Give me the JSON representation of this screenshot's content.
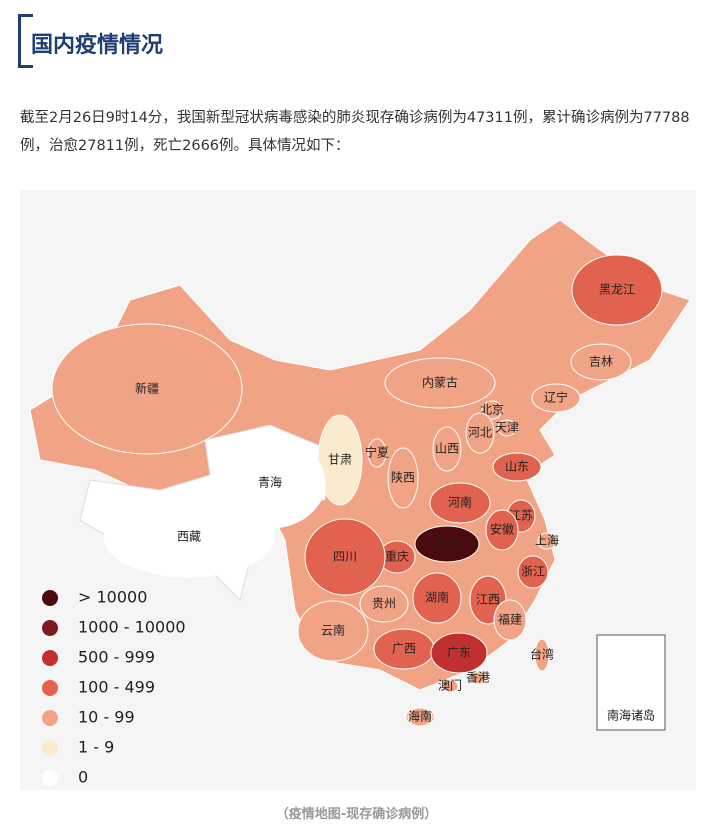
{
  "header": {
    "title": "国内疫情情况"
  },
  "paragraph": "截至2月26日9时14分，我国新型冠状病毒感染的肺炎现存确诊病例为47311例，累计确诊病例为77788例，治愈27811例，死亡2666例。具体情况如下：",
  "map": {
    "regions": [
      {
        "name": "黑龙江",
        "color": "#e0624f"
      },
      {
        "name": "吉林",
        "color": "#f1a485"
      },
      {
        "name": "辽宁",
        "color": "#f1a485"
      },
      {
        "name": "内蒙古",
        "color": "#f1a485"
      },
      {
        "name": "北京",
        "color": "#f1a485"
      },
      {
        "name": "天津",
        "color": "#f1a485"
      },
      {
        "name": "河北",
        "color": "#f1a485"
      },
      {
        "name": "山西",
        "color": "#f1a485"
      },
      {
        "name": "山东",
        "color": "#e0624f"
      },
      {
        "name": "河南",
        "color": "#e0624f"
      },
      {
        "name": "江苏",
        "color": "#e0624f"
      },
      {
        "name": "安徽",
        "color": "#e0624f"
      },
      {
        "name": "上海",
        "color": "#f1a485"
      },
      {
        "name": "浙江",
        "color": "#e0624f"
      },
      {
        "name": "江西",
        "color": "#e0624f"
      },
      {
        "name": "湖北",
        "color": "#4a0a0e"
      },
      {
        "name": "湖南",
        "color": "#e0624f"
      },
      {
        "name": "重庆",
        "color": "#e0624f"
      },
      {
        "name": "四川",
        "color": "#e0624f"
      },
      {
        "name": "贵州",
        "color": "#f1a485"
      },
      {
        "name": "云南",
        "color": "#f1a485"
      },
      {
        "name": "广西",
        "color": "#e0624f"
      },
      {
        "name": "广东",
        "color": "#c0302f"
      },
      {
        "name": "福建",
        "color": "#f1a485"
      },
      {
        "name": "台湾",
        "color": "#f1a485"
      },
      {
        "name": "香港",
        "color": "#f1a485"
      },
      {
        "name": "澳门",
        "color": "#f1a485"
      },
      {
        "name": "海南",
        "color": "#f1a485"
      },
      {
        "name": "宁夏",
        "color": "#f1a485"
      },
      {
        "name": "陕西",
        "color": "#f1a485"
      },
      {
        "name": "甘肃",
        "color": "#faebcf"
      },
      {
        "name": "青海",
        "color": "#ffffff"
      },
      {
        "name": "西藏",
        "color": "#ffffff"
      },
      {
        "name": "新疆",
        "color": "#f1a485"
      }
    ],
    "inset": "南海诸岛",
    "legend": [
      {
        "label": "> 10000",
        "color": "#4a0a0e"
      },
      {
        "label": "1000 - 10000",
        "color": "#7b1a20"
      },
      {
        "label": "500 - 999",
        "color": "#c0302f"
      },
      {
        "label": "100 - 499",
        "color": "#e0624f"
      },
      {
        "label": "10 - 99",
        "color": "#f1a485"
      },
      {
        "label": "1 - 9",
        "color": "#faebcf"
      },
      {
        "label": "0",
        "color": "#ffffff"
      }
    ]
  },
  "caption": "（疫情地图-现存确诊病例）"
}
